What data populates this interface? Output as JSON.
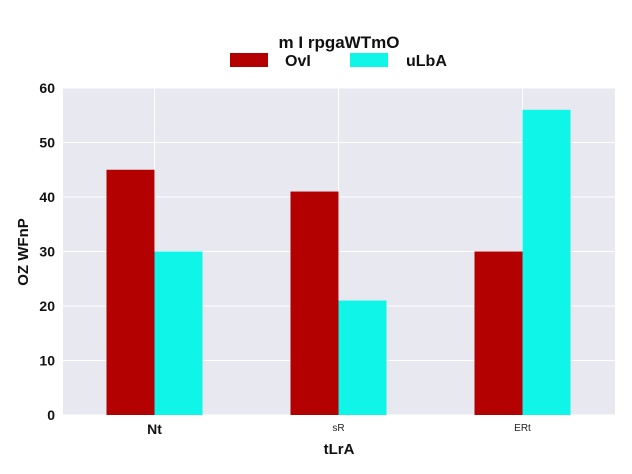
{
  "chart_data": {
    "type": "bar",
    "title": "m I rpgaWTmO",
    "xlabel": "tLrA",
    "ylabel": "OZ WFnP",
    "categories": [
      "Nt",
      "sR",
      "ERt"
    ],
    "series": [
      {
        "name": "OvI",
        "color": "#b30000",
        "values": [
          45,
          41,
          30
        ]
      },
      {
        "name": "uLbA",
        "color": "#0ff5e8",
        "values": [
          30,
          21,
          56
        ]
      }
    ],
    "ylim": [
      0,
      60
    ],
    "yticks": [
      0,
      10,
      20,
      30,
      40,
      50,
      60
    ],
    "grid": true,
    "legend_position": "top-center",
    "plot_background": "#e8e8f0"
  }
}
